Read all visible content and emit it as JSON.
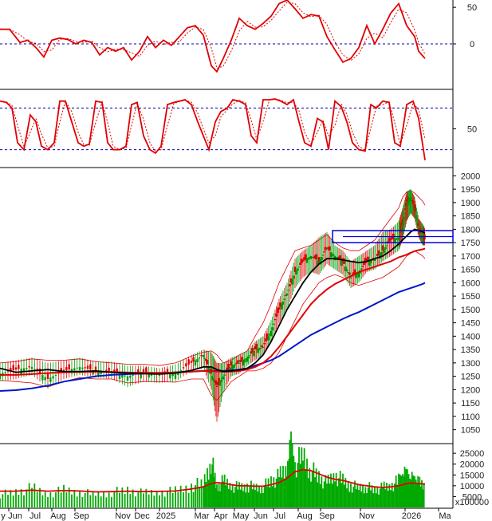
{
  "chart_data": [
    {
      "panel": "oscillator-1",
      "type": "line",
      "y_ticks": [
        "50",
        "0"
      ],
      "ylim": [
        -60,
        60
      ],
      "reference_lines": [
        0
      ],
      "series": [],
      "x": [
        0,
        12,
        25,
        35,
        45,
        55,
        65,
        75,
        85,
        95,
        105,
        115,
        125,
        135,
        145,
        155,
        165,
        175,
        185,
        195,
        205,
        215,
        225,
        235,
        245,
        255,
        265,
        272,
        280,
        290,
        300,
        310,
        320,
        330,
        340,
        350,
        360,
        370,
        380,
        390,
        400,
        410,
        420,
        430,
        440,
        450,
        460,
        470,
        480,
        490,
        500,
        510,
        520,
        525,
        533
      ],
      "y": [
        20,
        20,
        2,
        5,
        -5,
        -18,
        5,
        8,
        6,
        0,
        5,
        2,
        -15,
        -5,
        -10,
        -5,
        -22,
        -10,
        10,
        -5,
        5,
        -2,
        10,
        22,
        25,
        12,
        -30,
        -38,
        -20,
        5,
        35,
        25,
        20,
        28,
        38,
        55,
        60,
        48,
        35,
        40,
        38,
        10,
        -8,
        -25,
        -20,
        -5,
        25,
        0,
        20,
        42,
        55,
        25,
        10,
        -10,
        -20
      ]
    },
    {
      "panel": "oscillator-2",
      "type": "line",
      "y_ticks": [
        "50"
      ],
      "ylim": [
        0,
        100
      ],
      "reference_lines": [
        20,
        80
      ],
      "series": [],
      "x": [
        0,
        8,
        15,
        22,
        30,
        38,
        45,
        52,
        60,
        68,
        75,
        82,
        90,
        98,
        105,
        112,
        120,
        128,
        135,
        142,
        150,
        158,
        165,
        172,
        180,
        188,
        195,
        202,
        210,
        218,
        225,
        232,
        240,
        248,
        255,
        262,
        270,
        277,
        285,
        292,
        300,
        308,
        315,
        322,
        330,
        338,
        345,
        352,
        360,
        368,
        375,
        382,
        390,
        398,
        405,
        412,
        420,
        428,
        435,
        442,
        450,
        458,
        465,
        472,
        480,
        488,
        495,
        502,
        510,
        518,
        525,
        533
      ],
      "y": [
        90,
        88,
        80,
        30,
        20,
        70,
        60,
        25,
        20,
        30,
        90,
        90,
        60,
        30,
        25,
        28,
        90,
        88,
        30,
        20,
        20,
        25,
        85,
        88,
        40,
        20,
        15,
        25,
        85,
        88,
        90,
        92,
        85,
        60,
        40,
        20,
        60,
        75,
        80,
        92,
        90,
        85,
        40,
        30,
        92,
        92,
        93,
        90,
        85,
        92,
        60,
        30,
        25,
        65,
        60,
        20,
        90,
        82,
        60,
        30,
        20,
        18,
        85,
        80,
        90,
        88,
        30,
        25,
        85,
        90,
        65,
        5
      ]
    },
    {
      "panel": "price",
      "type": "candlestick",
      "y_ticks": [
        "2000",
        "1950",
        "1900",
        "1850",
        "1800",
        "1750",
        "1700",
        "1650",
        "1600",
        "1550",
        "1500",
        "1450",
        "1400",
        "1350",
        "1300",
        "1250",
        "1200",
        "1150",
        "1100",
        "1050"
      ],
      "ylim": [
        1010,
        2025
      ],
      "series": [],
      "x": [
        0,
        20,
        40,
        60,
        80,
        100,
        120,
        140,
        160,
        180,
        200,
        220,
        240,
        255,
        265,
        272,
        280,
        290,
        300,
        310,
        320,
        330,
        340,
        350,
        360,
        370,
        380,
        390,
        400,
        410,
        420,
        430,
        440,
        450,
        460,
        470,
        480,
        490,
        500,
        505,
        510,
        515,
        520,
        525,
        530,
        533
      ],
      "close": [
        1260,
        1275,
        1285,
        1240,
        1270,
        1285,
        1270,
        1270,
        1250,
        1265,
        1255,
        1260,
        1300,
        1330,
        1260,
        1210,
        1250,
        1290,
        1300,
        1320,
        1350,
        1360,
        1420,
        1500,
        1560,
        1640,
        1680,
        1700,
        1680,
        1730,
        1700,
        1680,
        1620,
        1640,
        1680,
        1690,
        1720,
        1760,
        1770,
        1820,
        1900,
        1920,
        1880,
        1800,
        1770,
        1760
      ],
      "high": [
        1300,
        1310,
        1320,
        1300,
        1310,
        1320,
        1305,
        1305,
        1290,
        1290,
        1280,
        1295,
        1330,
        1350,
        1340,
        1300,
        1300,
        1320,
        1330,
        1345,
        1380,
        1400,
        1460,
        1540,
        1600,
        1690,
        1720,
        1740,
        1770,
        1790,
        1740,
        1720,
        1680,
        1700,
        1720,
        1740,
        1790,
        1800,
        1830,
        1880,
        1940,
        1950,
        1920,
        1840,
        1820,
        1800
      ],
      "low": [
        1230,
        1240,
        1255,
        1205,
        1240,
        1255,
        1245,
        1240,
        1210,
        1230,
        1225,
        1230,
        1270,
        1280,
        1200,
        1080,
        1190,
        1250,
        1260,
        1290,
        1310,
        1330,
        1380,
        1450,
        1500,
        1580,
        1620,
        1640,
        1630,
        1670,
        1650,
        1630,
        1580,
        1600,
        1640,
        1650,
        1680,
        1700,
        1720,
        1760,
        1830,
        1860,
        1840,
        1770,
        1740,
        1740
      ],
      "ma_black": [
        1280,
        1265,
        1270,
        1275,
        1268,
        1268,
        1270,
        1265,
        1262,
        1260,
        1258,
        1262,
        1272,
        1285,
        1285,
        1275,
        1268,
        1270,
        1274,
        1280,
        1300,
        1330,
        1380,
        1440,
        1500,
        1550,
        1600,
        1640,
        1670,
        1690,
        1690,
        1685,
        1680,
        1675,
        1680,
        1690,
        1700,
        1720,
        1745,
        1760,
        1775,
        1790,
        1800,
        1795,
        1790,
        1785
      ],
      "ma_red": [
        1255,
        1255,
        1258,
        1262,
        1265,
        1266,
        1267,
        1266,
        1264,
        1263,
        1263,
        1264,
        1267,
        1270,
        1270,
        1268,
        1267,
        1268,
        1270,
        1275,
        1285,
        1300,
        1325,
        1360,
        1400,
        1440,
        1480,
        1520,
        1550,
        1575,
        1595,
        1610,
        1625,
        1640,
        1650,
        1660,
        1670,
        1680,
        1695,
        1700,
        1705,
        1712,
        1718,
        1722,
        1725,
        1728
      ],
      "ma_blue": [
        1195,
        1198,
        1205,
        1215,
        1230,
        1240,
        1250,
        1255,
        1258,
        1260,
        1262,
        1265,
        1268,
        1270,
        1271,
        1270,
        1270,
        1272,
        1275,
        1280,
        1290,
        1300,
        1310,
        1325,
        1345,
        1365,
        1385,
        1405,
        1420,
        1435,
        1450,
        1465,
        1478,
        1490,
        1505,
        1520,
        1535,
        1550,
        1565,
        1570,
        1575,
        1580,
        1585,
        1590,
        1595,
        1600
      ],
      "bb_upper": [
        1300,
        1305,
        1315,
        1310,
        1310,
        1315,
        1305,
        1300,
        1295,
        1295,
        1290,
        1300,
        1325,
        1340,
        1345,
        1330,
        1300,
        1310,
        1330,
        1345,
        1400,
        1450,
        1520,
        1600,
        1660,
        1720,
        1730,
        1740,
        1760,
        1780,
        1750,
        1730,
        1720,
        1720,
        1740,
        1760,
        1800,
        1840,
        1880,
        1920,
        1940,
        1945,
        1935,
        1920,
        1905,
        1890
      ],
      "bb_lower": [
        1235,
        1230,
        1225,
        1210,
        1230,
        1245,
        1240,
        1240,
        1225,
        1230,
        1230,
        1228,
        1240,
        1240,
        1180,
        1160,
        1190,
        1230,
        1250,
        1270,
        1270,
        1280,
        1300,
        1340,
        1400,
        1460,
        1520,
        1560,
        1600,
        1620,
        1630,
        1620,
        1600,
        1590,
        1600,
        1610,
        1620,
        1640,
        1660,
        1680,
        1700,
        1710,
        1720,
        1710,
        1700,
        1690
      ],
      "zone_box": {
        "bottom": 1750,
        "top": 1795
      }
    },
    {
      "panel": "volume",
      "type": "bar",
      "y_ticks": [
        "25000",
        "20000",
        "15000",
        "10000",
        "5000"
      ],
      "y_unit_label": "x100000",
      "ylim": [
        0,
        28000
      ],
      "series": [],
      "x": [
        0,
        20,
        40,
        60,
        80,
        100,
        120,
        140,
        160,
        180,
        200,
        220,
        240,
        255,
        265,
        272,
        280,
        290,
        300,
        310,
        320,
        330,
        340,
        350,
        360,
        365,
        370,
        380,
        390,
        400,
        410,
        420,
        430,
        440,
        450,
        460,
        470,
        480,
        490,
        500,
        505,
        510,
        515,
        520,
        525,
        533
      ],
      "values": [
        6000,
        7000,
        9000,
        6000,
        8000,
        7000,
        6000,
        7000,
        8000,
        6500,
        7000,
        7500,
        10000,
        11000,
        22000,
        9000,
        12000,
        10000,
        9000,
        10000,
        9000,
        9500,
        12000,
        14000,
        18000,
        27000,
        19000,
        24000,
        17000,
        14000,
        11000,
        15000,
        12000,
        10000,
        9000,
        9500,
        8000,
        9000,
        10000,
        12000,
        14000,
        15000,
        13000,
        12000,
        11000,
        10000
      ],
      "ma_red": [
        7500,
        7500,
        8000,
        7500,
        7800,
        7600,
        7200,
        7300,
        7500,
        7300,
        7400,
        7600,
        8500,
        9500,
        11000,
        11500,
        11200,
        10500,
        10000,
        10000,
        9800,
        9800,
        10500,
        11500,
        13500,
        15000,
        16500,
        17500,
        17000,
        15500,
        14000,
        13000,
        12500,
        11500,
        10500,
        10000,
        9500,
        9200,
        9500,
        10000,
        10500,
        11000,
        11300,
        11200,
        11000,
        10800
      ]
    }
  ],
  "x_axis": {
    "labels": [
      "y",
      "Jun",
      "Jul",
      "Aug",
      "Sep",
      "Nov",
      "Dec",
      "2025",
      "Mar",
      "Apr",
      "May",
      "Jun",
      "Jul",
      "Aug",
      "Sep",
      "Nov",
      "2026",
      "Ma"
    ]
  },
  "colors": {
    "indicator_line": "#e00000",
    "ref_line": "#0000aa",
    "ma_black": "#000000",
    "ma_red": "#e00000",
    "ma_blue": "#0018c8",
    "bollinger": "#e00000",
    "candle_up": "#009900",
    "candle_down": "#dd0000",
    "volume": "#00aa00",
    "zone_box": "#0000dd"
  }
}
